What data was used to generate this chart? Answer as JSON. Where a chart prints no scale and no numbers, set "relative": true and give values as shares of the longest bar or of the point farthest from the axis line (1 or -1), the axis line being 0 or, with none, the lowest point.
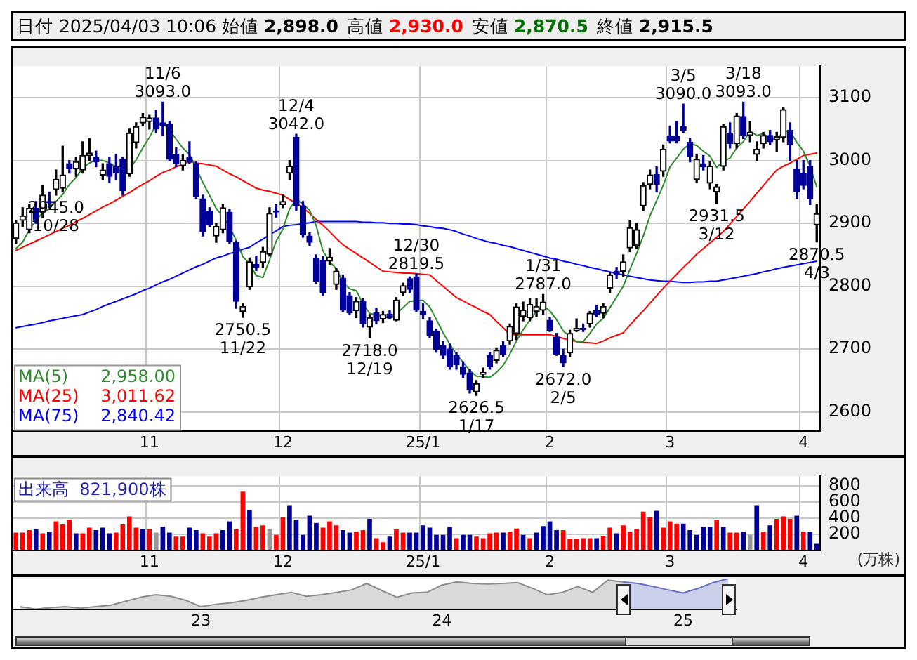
{
  "chart_data": [
    {
      "type": "candlestick",
      "title": "日付 2025/04/03 10:06",
      "grid": true,
      "annotations": [
        "始値 2,898.0",
        "高値 2,930.0",
        "安値 2,870.5",
        "終値 2,915.5",
        {
          "text": "2945.0\n10/28",
          "y": 2945
        },
        {
          "text": "11/6\n3093.0",
          "y": 3093
        },
        {
          "text": "2750.5\n11/22",
          "y": 2750.5
        },
        {
          "text": "12/4\n3042.0",
          "y": 3042
        },
        {
          "text": "2718.0\n12/19",
          "y": 2718
        },
        {
          "text": "12/30\n2819.5",
          "y": 2819.5
        },
        {
          "text": "2626.5\n1/17",
          "y": 2626.5
        },
        {
          "text": "1/31\n2787.0",
          "y": 2787
        },
        {
          "text": "2672.0\n2/5",
          "y": 2672
        },
        {
          "text": "3/5\n3090.0",
          "y": 3090
        },
        {
          "text": "2931.5\n3/12",
          "y": 2931.5
        },
        {
          "text": "3/18\n3093.0",
          "y": 3093
        },
        {
          "text": "2870.5\n4/3",
          "y": 2870.5
        }
      ],
      "categories": [
        null,
        null,
        null,
        null,
        null,
        null,
        null,
        null,
        null,
        null,
        null,
        null,
        null,
        null,
        null,
        null,
        null,
        null,
        null,
        null,
        "11",
        null,
        null,
        null,
        null,
        null,
        null,
        null,
        null,
        null,
        null,
        null,
        null,
        null,
        null,
        null,
        null,
        null,
        null,
        null,
        "12",
        null,
        null,
        null,
        null,
        null,
        null,
        null,
        null,
        null,
        null,
        null,
        null,
        null,
        null,
        null,
        null,
        null,
        null,
        null,
        null,
        "25/1",
        null,
        null,
        null,
        null,
        null,
        null,
        null,
        null,
        null,
        null,
        null,
        null,
        null,
        null,
        null,
        null,
        null,
        null,
        "2",
        null,
        null,
        null,
        null,
        null,
        null,
        null,
        null,
        null,
        null,
        null,
        null,
        null,
        null,
        null,
        null,
        null,
        "3",
        null,
        null,
        null,
        null,
        null,
        null,
        null,
        null,
        null,
        null,
        null,
        null,
        null,
        null,
        null,
        null,
        null,
        null,
        null,
        "4",
        null,
        null
      ],
      "ylim": [
        2570,
        3150
      ],
      "yticks": [
        2600,
        2700,
        2800,
        2900,
        3000,
        3100
      ],
      "ohlc": [
        [
          2876,
          2905,
          2868,
          2901
        ],
        [
          2905,
          2925,
          2895,
          2912
        ],
        [
          2890,
          2930,
          2885,
          2924
        ],
        [
          2924,
          2935,
          2900,
          2903
        ],
        [
          2918,
          2960,
          2910,
          2945
        ],
        [
          2935,
          2950,
          2925,
          2933
        ],
        [
          2954,
          2985,
          2945,
          2970
        ],
        [
          2956,
          3023,
          2950,
          2977
        ],
        [
          2995,
          3000,
          2980,
          2987
        ],
        [
          2987,
          3005,
          2975,
          2998
        ],
        [
          2985,
          3030,
          2980,
          3008
        ],
        [
          3008,
          3035,
          3000,
          3012
        ],
        [
          3006,
          3015,
          2990,
          2998
        ],
        [
          2977,
          2995,
          2970,
          2985
        ],
        [
          2995,
          3005,
          2965,
          2975
        ],
        [
          2990,
          3010,
          2970,
          2980
        ],
        [
          3002,
          3005,
          2945,
          2952
        ],
        [
          2979,
          3050,
          2975,
          3044
        ],
        [
          3029,
          3060,
          3020,
          3054
        ],
        [
          3060,
          3075,
          3055,
          3069
        ],
        [
          3062,
          3072,
          3050,
          3068
        ],
        [
          3068,
          3080,
          3045,
          3050
        ],
        [
          3060,
          3093,
          3040,
          3055
        ],
        [
          3058,
          3062,
          3000,
          3002
        ],
        [
          3010,
          3020,
          2990,
          2995
        ],
        [
          2992,
          3010,
          2985,
          3000
        ],
        [
          3005,
          3030,
          2995,
          2998
        ],
        [
          2995,
          2998,
          2940,
          2943
        ],
        [
          2939,
          2945,
          2880,
          2887
        ],
        [
          2920,
          2925,
          2895,
          2898
        ],
        [
          2880,
          2900,
          2870,
          2895
        ],
        [
          2890,
          2930,
          2885,
          2925
        ],
        [
          2918,
          2922,
          2868,
          2872
        ],
        [
          2870,
          2872,
          2765,
          2776
        ],
        [
          2760,
          2772,
          2750.5,
          2768
        ],
        [
          2799,
          2845,
          2795,
          2839
        ],
        [
          2835,
          2848,
          2825,
          2830
        ],
        [
          2838,
          2862,
          2830,
          2855
        ],
        [
          2851,
          2925,
          2848,
          2916
        ],
        [
          2920,
          2930,
          2910,
          2918
        ],
        [
          2930,
          2945,
          2925,
          2935
        ],
        [
          2980,
          3000,
          2970,
          2991
        ],
        [
          3037,
          3042,
          2920,
          2928
        ],
        [
          2928,
          2935,
          2878,
          2882
        ],
        [
          2880,
          2885,
          2865,
          2870
        ],
        [
          2845,
          2850,
          2805,
          2808
        ],
        [
          2841,
          2848,
          2785,
          2790
        ],
        [
          2840,
          2860,
          2835,
          2846
        ],
        [
          2803,
          2828,
          2795,
          2824
        ],
        [
          2813,
          2818,
          2760,
          2762
        ],
        [
          2785,
          2790,
          2755,
          2758
        ],
        [
          2761,
          2782,
          2750,
          2776
        ],
        [
          2776,
          2780,
          2735,
          2740
        ],
        [
          2735,
          2755,
          2718,
          2750
        ],
        [
          2758,
          2765,
          2740,
          2745
        ],
        [
          2748,
          2760,
          2742,
          2755
        ],
        [
          2756,
          2762,
          2748,
          2750
        ],
        [
          2746,
          2782,
          2745,
          2778
        ],
        [
          2790,
          2805,
          2785,
          2801
        ],
        [
          2812,
          2815,
          2790,
          2795
        ],
        [
          2815,
          2819.5,
          2760,
          2762
        ],
        [
          2760,
          2772,
          2748,
          2755
        ],
        [
          2745,
          2750,
          2718,
          2722
        ],
        [
          2728,
          2732,
          2695,
          2700
        ],
        [
          2705,
          2712,
          2685,
          2690
        ],
        [
          2700,
          2708,
          2668,
          2672
        ],
        [
          2690,
          2695,
          2668,
          2675
        ],
        [
          2672,
          2680,
          2655,
          2660
        ],
        [
          2662,
          2668,
          2630,
          2635
        ],
        [
          2632,
          2650,
          2626.5,
          2645
        ],
        [
          2660,
          2670,
          2655,
          2663
        ],
        [
          2690,
          2695,
          2668,
          2672
        ],
        [
          2682,
          2702,
          2678,
          2698
        ],
        [
          2705,
          2712,
          2688,
          2692
        ],
        [
          2713,
          2740,
          2708,
          2736
        ],
        [
          2725,
          2772,
          2715,
          2767
        ],
        [
          2752,
          2775,
          2745,
          2762
        ],
        [
          2750,
          2780,
          2745,
          2771
        ],
        [
          2760,
          2780,
          2752,
          2768
        ],
        [
          2762,
          2787,
          2755,
          2775
        ],
        [
          2746,
          2750,
          2728,
          2730
        ],
        [
          2719,
          2725,
          2690,
          2692
        ],
        [
          2690,
          2700,
          2672,
          2678
        ],
        [
          2694,
          2730,
          2688,
          2725
        ],
        [
          2730,
          2748,
          2728,
          2733
        ],
        [
          2733,
          2740,
          2728,
          2731
        ],
        [
          2740,
          2760,
          2735,
          2757
        ],
        [
          2762,
          2770,
          2752,
          2755
        ],
        [
          2757,
          2772,
          2750,
          2768
        ],
        [
          2797,
          2822,
          2790,
          2818
        ],
        [
          2824,
          2830,
          2812,
          2818
        ],
        [
          2824,
          2850,
          2815,
          2839
        ],
        [
          2861,
          2905,
          2855,
          2893
        ],
        [
          2865,
          2900,
          2860,
          2890
        ],
        [
          2928,
          2965,
          2920,
          2960
        ],
        [
          2962,
          2985,
          2955,
          2977
        ],
        [
          2978,
          2990,
          2950,
          2962
        ],
        [
          2983,
          3025,
          2975,
          3018
        ],
        [
          3039,
          3055,
          3028,
          3031
        ],
        [
          3039,
          3062,
          3028,
          3031
        ],
        [
          3054,
          3090,
          3045,
          3048
        ],
        [
          3029,
          3035,
          2998,
          3006
        ],
        [
          2970,
          3010,
          2965,
          3002
        ],
        [
          2995,
          3008,
          2985,
          2990
        ],
        [
          2964,
          2998,
          2955,
          2991
        ],
        [
          2950,
          2962,
          2931.5,
          2958
        ],
        [
          2991,
          3058,
          2985,
          3054
        ],
        [
          3044,
          3060,
          3020,
          3027
        ],
        [
          3027,
          3075,
          3020,
          3071
        ],
        [
          3070,
          3093,
          3035,
          3040
        ],
        [
          3040,
          3062,
          3030,
          3045
        ],
        [
          3010,
          3030,
          3000,
          3018
        ],
        [
          3027,
          3045,
          3020,
          3040
        ],
        [
          3040,
          3048,
          3025,
          3030
        ],
        [
          3033,
          3045,
          3015,
          3038
        ],
        [
          3037,
          3085,
          3030,
          3081
        ],
        [
          3048,
          3060,
          3000,
          3025
        ],
        [
          2987,
          3000,
          2940,
          2950
        ],
        [
          2980,
          3000,
          2955,
          2960.5
        ],
        [
          2991,
          3000,
          2930,
          2939
        ],
        [
          2898,
          2930,
          2870.5,
          2915.5
        ]
      ],
      "series": [
        {
          "type": "line",
          "name": "MA(5) 2,958.00",
          "color": "#2e8b2e",
          "values": [
            2860,
            2870,
            2890,
            2905,
            2917,
            2923,
            2935,
            2946,
            2962,
            2973,
            2988,
            2996,
            3001,
            3000,
            2996,
            2990,
            2978,
            2987,
            3001,
            3020,
            3037,
            3057,
            3059,
            3049,
            3034,
            3020,
            3010,
            2988,
            2965,
            2945,
            2924,
            2910,
            2895,
            2873,
            2847,
            2836,
            2817,
            2814,
            2842,
            2872,
            2891,
            2923,
            2938,
            2931,
            2921,
            2896,
            2856,
            2839,
            2828,
            2806,
            2796,
            2793,
            2772,
            2757,
            2754,
            2753,
            2748,
            2756,
            2766,
            2776,
            2777,
            2778,
            2767,
            2747,
            2726,
            2708,
            2692,
            2679,
            2666,
            2657,
            2656,
            2655,
            2663,
            2674,
            2692,
            2713,
            2731,
            2746,
            2761,
            2769,
            2761,
            2747,
            2729,
            2720,
            2712,
            2712,
            2725,
            2740,
            2749,
            2766,
            2783,
            2800,
            2827,
            2852,
            2880,
            2912,
            2936,
            2961,
            2990,
            3004,
            3018,
            3027,
            3024,
            3015,
            3007,
            2989,
            2999,
            3004,
            3020,
            3030,
            3047,
            3040,
            3043,
            3035,
            3034,
            3046,
            3047,
            3029,
            3015,
            2991,
            2958
          ]
        },
        {
          "type": "line",
          "name": "MA(25) 3,011.62",
          "color": "#ff0000",
          "values": [
            2857,
            2862,
            2867,
            2872,
            2877,
            2882,
            2887,
            2892,
            2897,
            2903,
            2908,
            2914,
            2920,
            2926,
            2931,
            2937,
            2943,
            2949,
            2956,
            2962,
            2968,
            2975,
            2981,
            2985,
            2990,
            2994,
            2998,
            2996,
            2995,
            2993,
            2991,
            2985,
            2979,
            2974,
            2968,
            2962,
            2956,
            2953,
            2951,
            2948,
            2945,
            2938,
            2932,
            2925,
            2916,
            2906,
            2897,
            2887,
            2876,
            2866,
            2859,
            2852,
            2845,
            2838,
            2831,
            2824,
            2823,
            2822,
            2821,
            2821,
            2820,
            2819,
            2818,
            2809,
            2800,
            2791,
            2782,
            2777,
            2771,
            2766,
            2760,
            2755,
            2744,
            2734,
            2723,
            2723,
            2723,
            2723,
            2723,
            2723,
            2723,
            2720,
            2717,
            2715,
            2712,
            2711,
            2710,
            2709,
            2713,
            2718,
            2722,
            2726,
            2738,
            2750,
            2761,
            2773,
            2785,
            2797,
            2808,
            2819,
            2830,
            2840,
            2851,
            2860,
            2869,
            2878,
            2887,
            2899,
            2911,
            2923,
            2935,
            2948,
            2960,
            2973,
            2985,
            2991,
            2996,
            3002,
            3008,
            3010,
            3012
          ]
        },
        {
          "type": "line",
          "name": "MA(75) 2,840.42",
          "color": "#0000ff",
          "values": [
            2734,
            2736,
            2738,
            2740,
            2742,
            2745,
            2747,
            2749,
            2751,
            2753,
            2755,
            2759,
            2763,
            2768,
            2772,
            2776,
            2780,
            2784,
            2788,
            2793,
            2797,
            2802,
            2807,
            2811,
            2816,
            2821,
            2826,
            2831,
            2835,
            2840,
            2845,
            2848,
            2852,
            2855,
            2859,
            2862,
            2869,
            2875,
            2882,
            2888,
            2895,
            2897,
            2898,
            2900,
            2901,
            2903,
            2903,
            2903,
            2903,
            2903,
            2903,
            2903,
            2902,
            2902,
            2901,
            2901,
            2900,
            2900,
            2899,
            2899,
            2898,
            2896,
            2895,
            2893,
            2892,
            2890,
            2887,
            2883,
            2880,
            2876,
            2873,
            2870,
            2868,
            2865,
            2863,
            2860,
            2857,
            2854,
            2851,
            2848,
            2845,
            2843,
            2840,
            2838,
            2835,
            2833,
            2830,
            2828,
            2825,
            2823,
            2820,
            2818,
            2816,
            2814,
            2812,
            2810,
            2809,
            2808,
            2808,
            2807,
            2806,
            2806,
            2807,
            2807,
            2808,
            2808,
            2810,
            2812,
            2814,
            2816,
            2818,
            2820,
            2823,
            2825,
            2828,
            2830,
            2832,
            2834,
            2836,
            2838,
            2840
          ]
        }
      ]
    },
    {
      "type": "bar",
      "title": "出来高  821,900株",
      "ylabel": "(万株)",
      "grid": true,
      "categories": [
        null,
        null,
        null,
        null,
        null,
        null,
        null,
        null,
        null,
        null,
        null,
        null,
        null,
        null,
        null,
        null,
        null,
        null,
        null,
        null,
        "11",
        null,
        null,
        null,
        null,
        null,
        null,
        null,
        null,
        null,
        null,
        null,
        null,
        null,
        null,
        null,
        null,
        null,
        null,
        null,
        "12",
        null,
        null,
        null,
        null,
        null,
        null,
        null,
        null,
        null,
        null,
        null,
        null,
        null,
        null,
        null,
        null,
        null,
        null,
        null,
        null,
        "25/1",
        null,
        null,
        null,
        null,
        null,
        null,
        null,
        null,
        null,
        null,
        null,
        null,
        null,
        null,
        null,
        null,
        null,
        null,
        "2",
        null,
        null,
        null,
        null,
        null,
        null,
        null,
        null,
        null,
        null,
        null,
        null,
        null,
        null,
        null,
        null,
        null,
        "3",
        null,
        null,
        null,
        null,
        null,
        null,
        null,
        null,
        null,
        null,
        null,
        null,
        null,
        null,
        null,
        null,
        null,
        null,
        null,
        "4",
        null,
        null
      ],
      "ylim": [
        0,
        920
      ],
      "yticks": [
        200,
        400,
        600,
        800
      ],
      "values": [
        220,
        220,
        250,
        260,
        210,
        230,
        360,
        320,
        380,
        210,
        210,
        280,
        250,
        280,
        210,
        220,
        320,
        420,
        280,
        260,
        260,
        220,
        290,
        220,
        170,
        170,
        280,
        250,
        210,
        170,
        210,
        250,
        360,
        260,
        730,
        500,
        290,
        310,
        260,
        190,
        410,
        560,
        380,
        190,
        430,
        340,
        280,
        360,
        310,
        250,
        220,
        230,
        250,
        390,
        150,
        100,
        170,
        260,
        220,
        220,
        220,
        310,
        280,
        190,
        190,
        290,
        150,
        190,
        190,
        170,
        150,
        210,
        220,
        220,
        230,
        270,
        190,
        150,
        220,
        300,
        360,
        250,
        250,
        140,
        140,
        150,
        150,
        150,
        180,
        280,
        210,
        310,
        230,
        260,
        480,
        410,
        490,
        280,
        360,
        330,
        330,
        250,
        190,
        290,
        290,
        380,
        290,
        220,
        220,
        230,
        190,
        560,
        230,
        310,
        390,
        420,
        390,
        430,
        230,
        230,
        80
      ],
      "colors": [
        "#ff0000",
        "#ff0000",
        "#ff0000",
        "#000099",
        "#ff0000",
        "#000099",
        "#ff0000",
        "#ff0000",
        "#ff0000",
        "#000099",
        "#ff0000",
        "#ff0000",
        "#000099",
        "#000099",
        "#000099",
        "#ff0000",
        "#ff0000",
        "#ff0000",
        "#ff0000",
        "#000099",
        "#ff0000",
        "#999999",
        "#000099",
        "#000099",
        "#ff0000",
        "#ff0000",
        "#000099",
        "#000099",
        "#ff0000",
        "#ff0000",
        "#ff0000",
        "#000099",
        "#000099",
        "#ff0000",
        "#ff0000",
        "#000099",
        "#ff0000",
        "#ff0000",
        "#999999",
        "#ff0000",
        "#ff0000",
        "#000099",
        "#000099",
        "#000099",
        "#000099",
        "#000099",
        "#ff0000",
        "#ff0000",
        "#ff0000",
        "#000099",
        "#000099",
        "#ff0000",
        "#ff0000",
        "#000099",
        "#ff0000",
        "#ff0000",
        "#000099",
        "#ff0000",
        "#ff0000",
        "#000099",
        "#000099",
        "#000099",
        "#000099",
        "#000099",
        "#000099",
        "#000099",
        "#ff0000",
        "#000099",
        "#000099",
        "#ff0000",
        "#ff0000",
        "#ff0000",
        "#ff0000",
        "#000099",
        "#ff0000",
        "#ff0000",
        "#000099",
        "#ff0000",
        "#000099",
        "#000099",
        "#000099",
        "#000099",
        "#ff0000",
        "#ff0000",
        "#ff0000",
        "#ff0000",
        "#ff0000",
        "#000099",
        "#ff0000",
        "#ff0000",
        "#000099",
        "#ff0000",
        "#ff0000",
        "#ff0000",
        "#ff0000",
        "#ff0000",
        "#000099",
        "#ff0000",
        "#ff0000",
        "#ff0000",
        "#000099",
        "#000099",
        "#000099",
        "#000099",
        "#000099",
        "#ff0000",
        "#000099",
        "#ff0000",
        "#ff0000",
        "#000099",
        "#999999",
        "#000099",
        "#ff0000",
        "#000099",
        "#ff0000",
        "#ff0000",
        "#ff0000",
        "#000099",
        "#ff0000",
        "#000099",
        "#000099"
      ]
    },
    {
      "type": "area",
      "relative": true,
      "categories": [
        null,
        null,
        null,
        null,
        null,
        null,
        null,
        null,
        null,
        null,
        null,
        null,
        "23",
        null,
        null,
        null,
        null,
        null,
        null,
        null,
        null,
        null,
        null,
        null,
        null,
        null,
        null,
        null,
        "24",
        null,
        null,
        null,
        null,
        null,
        null,
        null,
        null,
        null,
        null,
        null,
        null,
        null,
        null,
        null,
        "25",
        null,
        null,
        null
      ],
      "series": [
        {
          "color": "#8c8c8c",
          "values": [
            0.08,
            0,
            0.05,
            0.08,
            0.03,
            0.08,
            0.13,
            0.26,
            0.39,
            0.47,
            0.42,
            0.29,
            0.08,
            0.16,
            0.21,
            0.29,
            0.39,
            0.47,
            0.55,
            0.42,
            0.47,
            0.55,
            0.63,
            0.84,
            0.61,
            0.39,
            0.53,
            0.55,
            0.79,
            0.89,
            0.84,
            0.82,
            0.84,
            0.87,
            0.68,
            0.47,
            0.55,
            0.74,
            0.55,
            0.95,
            0.89,
            null,
            null,
            null,
            null,
            null,
            null,
            null
          ]
        },
        {
          "color": "#6670c0",
          "values": [
            null,
            null,
            null,
            null,
            null,
            null,
            null,
            null,
            null,
            null,
            null,
            null,
            null,
            null,
            null,
            null,
            null,
            null,
            null,
            null,
            null,
            null,
            null,
            null,
            null,
            null,
            null,
            null,
            null,
            null,
            null,
            null,
            null,
            null,
            null,
            null,
            null,
            null,
            null,
            null,
            0.89,
            0.84,
            0.74,
            0.63,
            0.53,
            0.68,
            0.87,
            1
          ]
        }
      ]
    }
  ]
}
